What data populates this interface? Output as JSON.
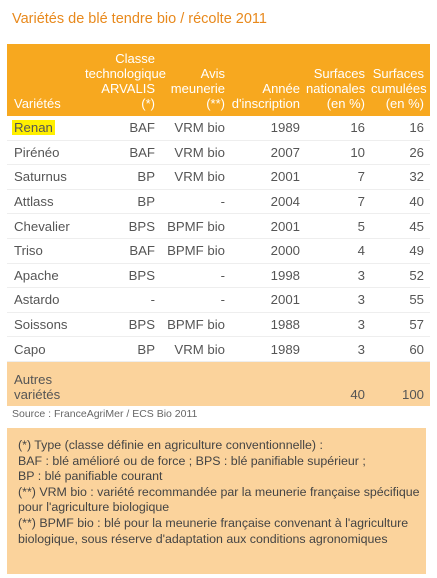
{
  "title": "Variétés de blé tendre bio / récolte 2011",
  "columns": {
    "variete": "Variétés",
    "classe": [
      "Classe",
      "technologique",
      "ARVALIS",
      "(*)"
    ],
    "avis": [
      "Avis",
      "meunerie",
      "(**)"
    ],
    "annee": [
      "Année",
      "d'inscription"
    ],
    "surf_nat": [
      "Surfaces",
      "nationales",
      "(en %)"
    ],
    "surf_cum": [
      "Surfaces",
      "cumulées",
      "(en %)"
    ]
  },
  "rows": [
    {
      "variete": "Renan",
      "classe": "BAF",
      "avis": "VRM bio",
      "annee": "1989",
      "surf_nat": "16",
      "surf_cum": "16",
      "highlight": true
    },
    {
      "variete": "Pirénéo",
      "classe": "BAF",
      "avis": "VRM bio",
      "annee": "2007",
      "surf_nat": "10",
      "surf_cum": "26"
    },
    {
      "variete": "Saturnus",
      "classe": "BP",
      "avis": "VRM bio",
      "annee": "2001",
      "surf_nat": "7",
      "surf_cum": "32"
    },
    {
      "variete": "Attlass",
      "classe": "BP",
      "avis": "-",
      "annee": "2004",
      "surf_nat": "7",
      "surf_cum": "40"
    },
    {
      "variete": "Chevalier",
      "classe": "BPS",
      "avis": "BPMF bio",
      "annee": "2001",
      "surf_nat": "5",
      "surf_cum": "45"
    },
    {
      "variete": "Triso",
      "classe": "BAF",
      "avis": "BPMF bio",
      "annee": "2000",
      "surf_nat": "4",
      "surf_cum": "49"
    },
    {
      "variete": "Apache",
      "classe": "BPS",
      "avis": "-",
      "annee": "1998",
      "surf_nat": "3",
      "surf_cum": "52"
    },
    {
      "variete": "Astardo",
      "classe": "-",
      "avis": "-",
      "annee": "2001",
      "surf_nat": "3",
      "surf_cum": "55"
    },
    {
      "variete": "Soissons",
      "classe": "BPS",
      "avis": "BPMF bio",
      "annee": "1988",
      "surf_nat": "3",
      "surf_cum": "57"
    },
    {
      "variete": "Capo",
      "classe": "BP",
      "avis": "VRM bio",
      "annee": "1989",
      "surf_nat": "3",
      "surf_cum": "60"
    }
  ],
  "other": {
    "label": [
      "Autres",
      "variétés"
    ],
    "surf_nat": "40",
    "surf_cum": "100"
  },
  "source": "Source : FranceAgriMer / ECS Bio 2011",
  "notes": [
    "(*) Type (classe définie en agriculture conventionnelle) :",
    "BAF : blé amélioré ou de force ; BPS : blé panifiable supérieur ;",
    "BP : blé panifiable courant",
    " (**) VRM bio : variété recommandée par la meunerie française spécifique",
    "pour l'agriculture biologique",
    " (**) BPMF bio : blé pour la meunerie française convenant à l'agriculture",
    "biologique, sous réserve d'adaptation aux conditions agronomiques"
  ],
  "colors": {
    "header": "#f7a81f",
    "title": "#e8891c",
    "shade": "#fbd39c",
    "highlight": "#ffef00"
  }
}
